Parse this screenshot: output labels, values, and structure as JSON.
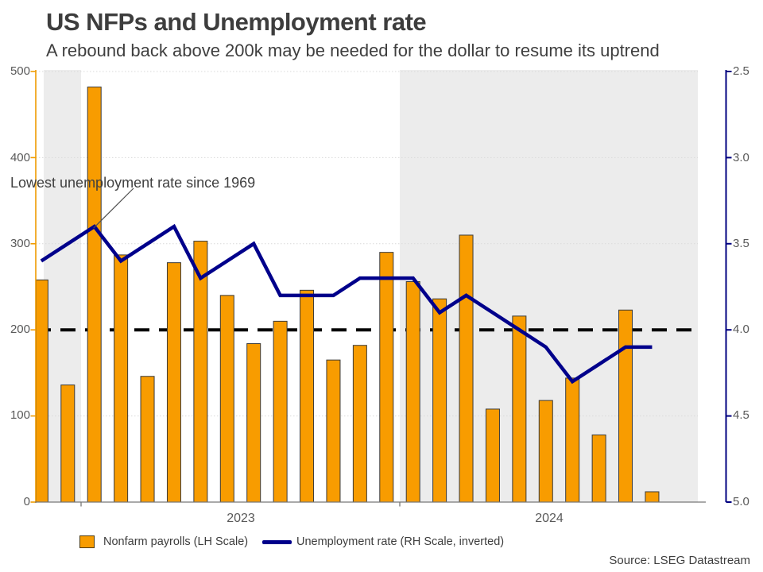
{
  "title": "US NFPs and Unemployment rate",
  "subtitle": "A rebound back above 200k may be needed for the dollar to resume its uptrend",
  "source": "Source: LSEG Datastream",
  "annotation_text": "Lowest unemployment rate since 1969",
  "legend": {
    "bar_label": "Nonfarm payrolls (LH Scale)",
    "line_label": "Unemployment rate (RH Scale, inverted)"
  },
  "colors": {
    "bar_fill": "#f89c00",
    "bar_border": "#3a3a3a",
    "line": "#00008b",
    "left_axis": "#ef9b00",
    "right_axis": "#000080",
    "bottom_axis": "#777777",
    "grid": "#d9d9d9",
    "band": "#ececec",
    "reference_line": "#000000",
    "heading_text": "#3d3d3d",
    "tick_text": "#595959"
  },
  "chart_data": {
    "type": "bar+line combo (dual axis)",
    "title": "US NFPs and Unemployment rate",
    "subtitle": "A rebound back above 200k may be needed for the dollar to resume its uptrend",
    "x_monthly": [
      "2022-11",
      "2022-12",
      "2023-01",
      "2023-02",
      "2023-03",
      "2023-04",
      "2023-05",
      "2023-06",
      "2023-07",
      "2023-08",
      "2023-09",
      "2023-10",
      "2023-11",
      "2023-12",
      "2024-01",
      "2024-02",
      "2024-03",
      "2024-04",
      "2024-05",
      "2024-06",
      "2024-07",
      "2024-08",
      "2024-09",
      "2024-10"
    ],
    "series": [
      {
        "name": "Nonfarm payrolls (LH Scale)",
        "type": "bar",
        "axis": "left",
        "unit": "thousands",
        "values": [
          258,
          136,
          482,
          287,
          146,
          278,
          303,
          240,
          184,
          210,
          246,
          165,
          182,
          290,
          256,
          236,
          310,
          108,
          216,
          118,
          144,
          78,
          223,
          12
        ]
      },
      {
        "name": "Unemployment rate (RH Scale, inverted)",
        "type": "line",
        "axis": "right",
        "unit": "percent",
        "values": [
          3.6,
          3.5,
          3.4,
          3.6,
          3.5,
          3.4,
          3.7,
          3.6,
          3.5,
          3.8,
          3.8,
          3.8,
          3.7,
          3.7,
          3.7,
          3.9,
          3.8,
          3.9,
          4.0,
          4.1,
          4.3,
          4.2,
          4.1,
          4.1
        ]
      }
    ],
    "left_axis": {
      "range": [
        0,
        500
      ],
      "ticks": [
        0,
        100,
        200,
        300,
        400,
        500
      ],
      "tick_labels": [
        "0",
        "100",
        "200",
        "300",
        "400",
        "500"
      ]
    },
    "right_axis": {
      "range": [
        2.5,
        5.0
      ],
      "inverted": true,
      "ticks": [
        2.5,
        3.0,
        3.5,
        4.0,
        4.5,
        5.0
      ],
      "tick_labels": [
        "2.5",
        "3.0",
        "3.5",
        "4.0",
        "4.5",
        "5.0"
      ]
    },
    "x_axis": {
      "year_labels": [
        "2023",
        "2024"
      ],
      "year_tick_months": [
        "2023-01",
        "2024-01"
      ]
    },
    "reference_line": {
      "value": 200,
      "style": "dashed",
      "color": "#000000"
    },
    "shaded_periods": [
      {
        "from": "2022-11",
        "to": "2022-12"
      },
      {
        "from": "2024-01",
        "to": "2024-10"
      }
    ],
    "annotation": {
      "text": "Lowest unemployment rate since 1969",
      "points_to": "2023-01 unemployment rate low of 3.4%"
    },
    "grid": "horizontal dotted lines",
    "legend_position": "bottom"
  }
}
